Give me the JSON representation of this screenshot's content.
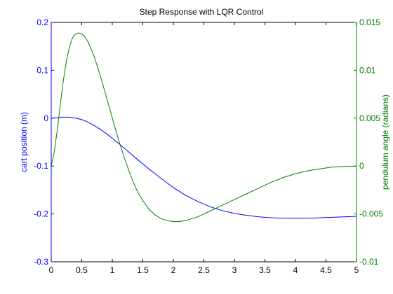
{
  "chart_data": {
    "type": "line",
    "title": "Step Response with LQR Control",
    "xlabel": "",
    "xlim": [
      0,
      5
    ],
    "x_ticks": [
      "0",
      "0.5",
      "1",
      "1.5",
      "2",
      "2.5",
      "3",
      "3.5",
      "4",
      "4.5",
      "5"
    ],
    "left_axis": {
      "label": "cart position (m)",
      "color": "#0000ff",
      "ylim": [
        -0.3,
        0.2
      ],
      "ticks": [
        "-0.3",
        "-0.2",
        "-0.1",
        "0",
        "0.1",
        "0.2"
      ]
    },
    "right_axis": {
      "label": "pendulum angle (radians)",
      "color": "#008000",
      "ylim": [
        -0.01,
        0.015
      ],
      "ticks": [
        "-0.01",
        "-0.005",
        "0",
        "0.005",
        "0.01",
        "0.015"
      ]
    },
    "grid": false,
    "series": [
      {
        "axis": "left",
        "color": "#0000ff",
        "x": [
          0,
          0.1,
          0.2,
          0.3,
          0.4,
          0.5,
          0.6,
          0.7,
          0.8,
          0.9,
          1.0,
          1.2,
          1.4,
          1.6,
          1.8,
          2.0,
          2.2,
          2.4,
          2.6,
          2.8,
          3.0,
          3.2,
          3.4,
          3.6,
          3.8,
          4.0,
          4.2,
          4.4,
          4.6,
          4.8,
          5.0
        ],
        "values": [
          0,
          0.001,
          0.002,
          0.002,
          0.0,
          -0.003,
          -0.008,
          -0.015,
          -0.023,
          -0.032,
          -0.042,
          -0.063,
          -0.085,
          -0.106,
          -0.126,
          -0.145,
          -0.161,
          -0.174,
          -0.185,
          -0.193,
          -0.199,
          -0.203,
          -0.206,
          -0.208,
          -0.209,
          -0.209,
          -0.209,
          -0.208,
          -0.207,
          -0.206,
          -0.205
        ]
      },
      {
        "axis": "right",
        "color": "#008000",
        "x": [
          0,
          0.05,
          0.1,
          0.15,
          0.2,
          0.25,
          0.3,
          0.35,
          0.4,
          0.45,
          0.5,
          0.55,
          0.6,
          0.7,
          0.8,
          0.9,
          1.0,
          1.1,
          1.2,
          1.3,
          1.4,
          1.5,
          1.6,
          1.7,
          1.8,
          1.9,
          2.0,
          2.1,
          2.2,
          2.3,
          2.4,
          2.5,
          2.6,
          2.8,
          3.0,
          3.2,
          3.4,
          3.6,
          3.8,
          4.0,
          4.2,
          4.4,
          4.6,
          4.8,
          5.0
        ],
        "values": [
          0,
          0.0015,
          0.0038,
          0.0065,
          0.009,
          0.011,
          0.0125,
          0.0134,
          0.0138,
          0.0139,
          0.0138,
          0.0135,
          0.013,
          0.0115,
          0.0095,
          0.0073,
          0.005,
          0.0028,
          0.0008,
          -0.001,
          -0.0025,
          -0.0036,
          -0.0045,
          -0.0051,
          -0.0055,
          -0.0057,
          -0.0058,
          -0.0058,
          -0.0057,
          -0.0055,
          -0.0053,
          -0.005,
          -0.0047,
          -0.0041,
          -0.0035,
          -0.0029,
          -0.0023,
          -0.0017,
          -0.0012,
          -0.0008,
          -0.0005,
          -0.0003,
          -0.0001,
          -5e-05,
          0
        ]
      }
    ]
  }
}
